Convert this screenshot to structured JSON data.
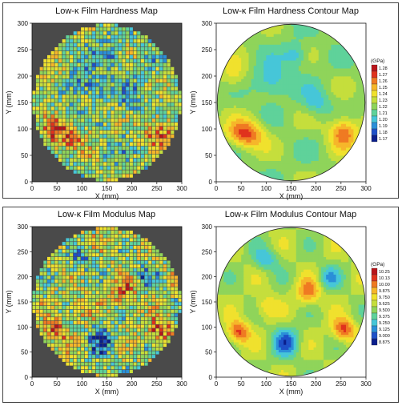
{
  "chart_data": [
    {
      "type": "heatmap",
      "title": "Low-κ Film Hardness Map",
      "xlabel": "X (mm)",
      "ylabel": "Y (mm)",
      "xlim": [
        0,
        300
      ],
      "ylim": [
        0,
        300
      ],
      "ticks": [
        "0",
        "50",
        "100",
        "150",
        "200",
        "250",
        "300"
      ],
      "background": "#4a4a4a",
      "property": "hardness",
      "range": [
        1.17,
        1.28
      ]
    },
    {
      "type": "heatmap",
      "title": "Low-κ Film Hardness Contour Map",
      "xlabel": "X (mm)",
      "ylabel": "Y (mm)",
      "xlim": [
        0,
        300
      ],
      "ylim": [
        0,
        300
      ],
      "ticks": [
        "0",
        "50",
        "100",
        "150",
        "200",
        "250",
        "300"
      ],
      "property": "hardness",
      "unit": "(GPa)",
      "legend": [
        "1.28",
        "1.27",
        "1.26",
        "1.25",
        "1.24",
        "1.23",
        "1.22",
        "1.21",
        "1.20",
        "1.19",
        "1.18",
        "1.17"
      ],
      "range": [
        1.17,
        1.28
      ]
    },
    {
      "type": "heatmap",
      "title": "Low-κ Film Modulus Map",
      "xlabel": "X (mm)",
      "ylabel": "Y (mm)",
      "xlim": [
        0,
        300
      ],
      "ylim": [
        0,
        300
      ],
      "ticks": [
        "0",
        "50",
        "100",
        "150",
        "200",
        "250",
        "300"
      ],
      "background": "#4a4a4a",
      "property": "modulus",
      "range": [
        9.875,
        10.25
      ]
    },
    {
      "type": "heatmap",
      "title": "Low-κ Film Modulus Contour Map",
      "xlabel": "X (mm)",
      "ylabel": "Y (mm)",
      "xlim": [
        0,
        300
      ],
      "ylim": [
        0,
        300
      ],
      "ticks": [
        "0",
        "50",
        "100",
        "150",
        "200",
        "250",
        "300"
      ],
      "property": "modulus",
      "unit": "(GPa)",
      "legend": [
        "10.25",
        "10.13",
        "10.00",
        "9.875",
        "9.750",
        "9.625",
        "9.500",
        "9.375",
        "9.250",
        "9.125",
        "9.000",
        "8.875"
      ],
      "range": [
        9.875,
        10.25
      ]
    }
  ],
  "colors": {
    "scale": [
      "#0b1f8c",
      "#1e50c8",
      "#2a8fd8",
      "#46c6d8",
      "#5fd29a",
      "#8fd45a",
      "#c5de3c",
      "#f0e12d",
      "#f6b62a",
      "#ef7a22",
      "#e0321d",
      "#b8141a"
    ],
    "wafer_background": "#4a4a4a"
  }
}
